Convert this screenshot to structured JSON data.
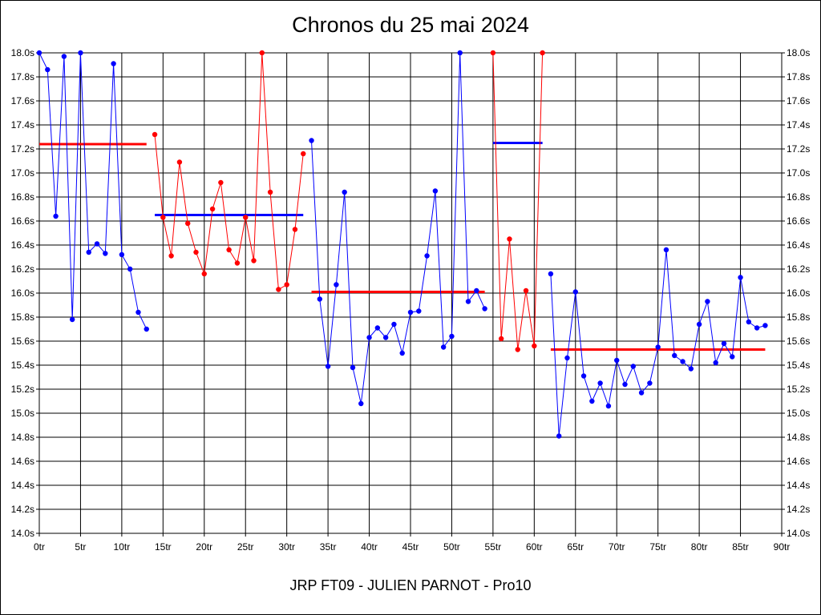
{
  "chart_data": {
    "type": "line",
    "title": "Chronos du 25 mai 2024",
    "subtitle": "JRP FT09 - JULIEN PARNOT - Pro10",
    "xlim": [
      0,
      90
    ],
    "ylim": [
      14.0,
      18.0
    ],
    "x_ticks": [
      0,
      5,
      10,
      15,
      20,
      25,
      30,
      35,
      40,
      45,
      50,
      55,
      60,
      65,
      70,
      75,
      80,
      85,
      90
    ],
    "x_tick_labels": [
      "0tr",
      "5tr",
      "10tr",
      "15tr",
      "20tr",
      "25tr",
      "30tr",
      "35tr",
      "40tr",
      "45tr",
      "50tr",
      "55tr",
      "60tr",
      "65tr",
      "70tr",
      "75tr",
      "80tr",
      "85tr",
      "90tr"
    ],
    "y_ticks": [
      14.0,
      14.2,
      14.4,
      14.6,
      14.8,
      15.0,
      15.2,
      15.4,
      15.6,
      15.8,
      16.0,
      16.2,
      16.4,
      16.6,
      16.8,
      17.0,
      17.2,
      17.4,
      17.6,
      17.8,
      18.0
    ],
    "y_tick_labels": [
      "14.0s",
      "14.2s",
      "14.4s",
      "14.6s",
      "14.8s",
      "15.0s",
      "15.2s",
      "15.4s",
      "15.6s",
      "15.8s",
      "16.0s",
      "16.2s",
      "16.4s",
      "16.6s",
      "16.8s",
      "17.0s",
      "17.2s",
      "17.4s",
      "17.6s",
      "17.8s",
      "18.0s"
    ],
    "grid": true,
    "colors": {
      "blue": "#0000ff",
      "red": "#ff0000",
      "grid": "#000000"
    },
    "series": [
      {
        "color": "#0000ff",
        "points": [
          [
            0,
            18.0
          ],
          [
            1,
            17.86
          ],
          [
            2,
            16.64
          ],
          [
            3,
            17.97
          ],
          [
            4,
            15.78
          ],
          [
            5,
            18.0
          ],
          [
            6,
            16.34
          ],
          [
            7,
            16.41
          ],
          [
            8,
            16.33
          ],
          [
            9,
            17.91
          ],
          [
            10,
            16.32
          ],
          [
            11,
            16.2
          ],
          [
            12,
            15.84
          ],
          [
            13,
            15.7
          ]
        ]
      },
      {
        "color": "#ff0000",
        "points": [
          [
            14,
            17.32
          ],
          [
            15,
            16.63
          ],
          [
            16,
            16.31
          ],
          [
            17,
            17.09
          ],
          [
            18,
            16.58
          ],
          [
            19,
            16.34
          ],
          [
            20,
            16.16
          ],
          [
            21,
            16.7
          ],
          [
            22,
            16.92
          ],
          [
            23,
            16.36
          ],
          [
            24,
            16.25
          ],
          [
            25,
            16.63
          ],
          [
            26,
            16.27
          ],
          [
            27,
            18.0
          ],
          [
            28,
            16.84
          ],
          [
            29,
            16.03
          ],
          [
            30,
            16.07
          ],
          [
            31,
            16.53
          ],
          [
            32,
            17.16
          ]
        ]
      },
      {
        "color": "#0000ff",
        "points": [
          [
            33,
            17.27
          ],
          [
            34,
            15.95
          ],
          [
            35,
            15.39
          ],
          [
            36,
            16.07
          ],
          [
            37,
            16.84
          ],
          [
            38,
            15.38
          ],
          [
            39,
            15.08
          ],
          [
            40,
            15.63
          ],
          [
            41,
            15.71
          ],
          [
            42,
            15.63
          ],
          [
            43,
            15.74
          ],
          [
            44,
            15.5
          ],
          [
            45,
            15.84
          ],
          [
            46,
            15.85
          ],
          [
            47,
            16.31
          ],
          [
            48,
            16.85
          ],
          [
            49,
            15.55
          ],
          [
            50,
            15.64
          ],
          [
            51,
            18.0
          ],
          [
            52,
            15.93
          ],
          [
            53,
            16.02
          ],
          [
            54,
            15.87
          ]
        ]
      },
      {
        "color": "#ff0000",
        "points": [
          [
            55,
            18.0
          ],
          [
            56,
            15.62
          ],
          [
            57,
            16.45
          ],
          [
            58,
            15.53
          ],
          [
            59,
            16.02
          ],
          [
            60,
            15.56
          ],
          [
            61,
            18.0
          ]
        ]
      },
      {
        "color": "#0000ff",
        "points": [
          [
            62,
            16.16
          ],
          [
            63,
            14.81
          ],
          [
            64,
            15.46
          ],
          [
            65,
            16.01
          ],
          [
            66,
            15.31
          ],
          [
            67,
            15.1
          ],
          [
            68,
            15.25
          ],
          [
            69,
            15.06
          ],
          [
            70,
            15.44
          ],
          [
            71,
            15.24
          ],
          [
            72,
            15.39
          ],
          [
            73,
            15.17
          ],
          [
            74,
            15.25
          ],
          [
            75,
            15.55
          ],
          [
            76,
            16.36
          ],
          [
            77,
            15.48
          ],
          [
            78,
            15.43
          ],
          [
            79,
            15.37
          ],
          [
            80,
            15.74
          ],
          [
            81,
            15.93
          ],
          [
            82,
            15.42
          ],
          [
            83,
            15.58
          ],
          [
            84,
            15.47
          ],
          [
            85,
            16.13
          ],
          [
            86,
            15.76
          ],
          [
            87,
            15.71
          ],
          [
            88,
            15.73
          ]
        ]
      }
    ],
    "averages": [
      {
        "color": "#ff0000",
        "x": [
          0,
          13
        ],
        "y": 17.24
      },
      {
        "color": "#0000ff",
        "x": [
          14,
          32
        ],
        "y": 16.65
      },
      {
        "color": "#ff0000",
        "x": [
          33,
          54
        ],
        "y": 16.01
      },
      {
        "color": "#0000ff",
        "x": [
          55,
          61
        ],
        "y": 17.25
      },
      {
        "color": "#ff0000",
        "x": [
          62,
          88
        ],
        "y": 15.53
      }
    ]
  }
}
